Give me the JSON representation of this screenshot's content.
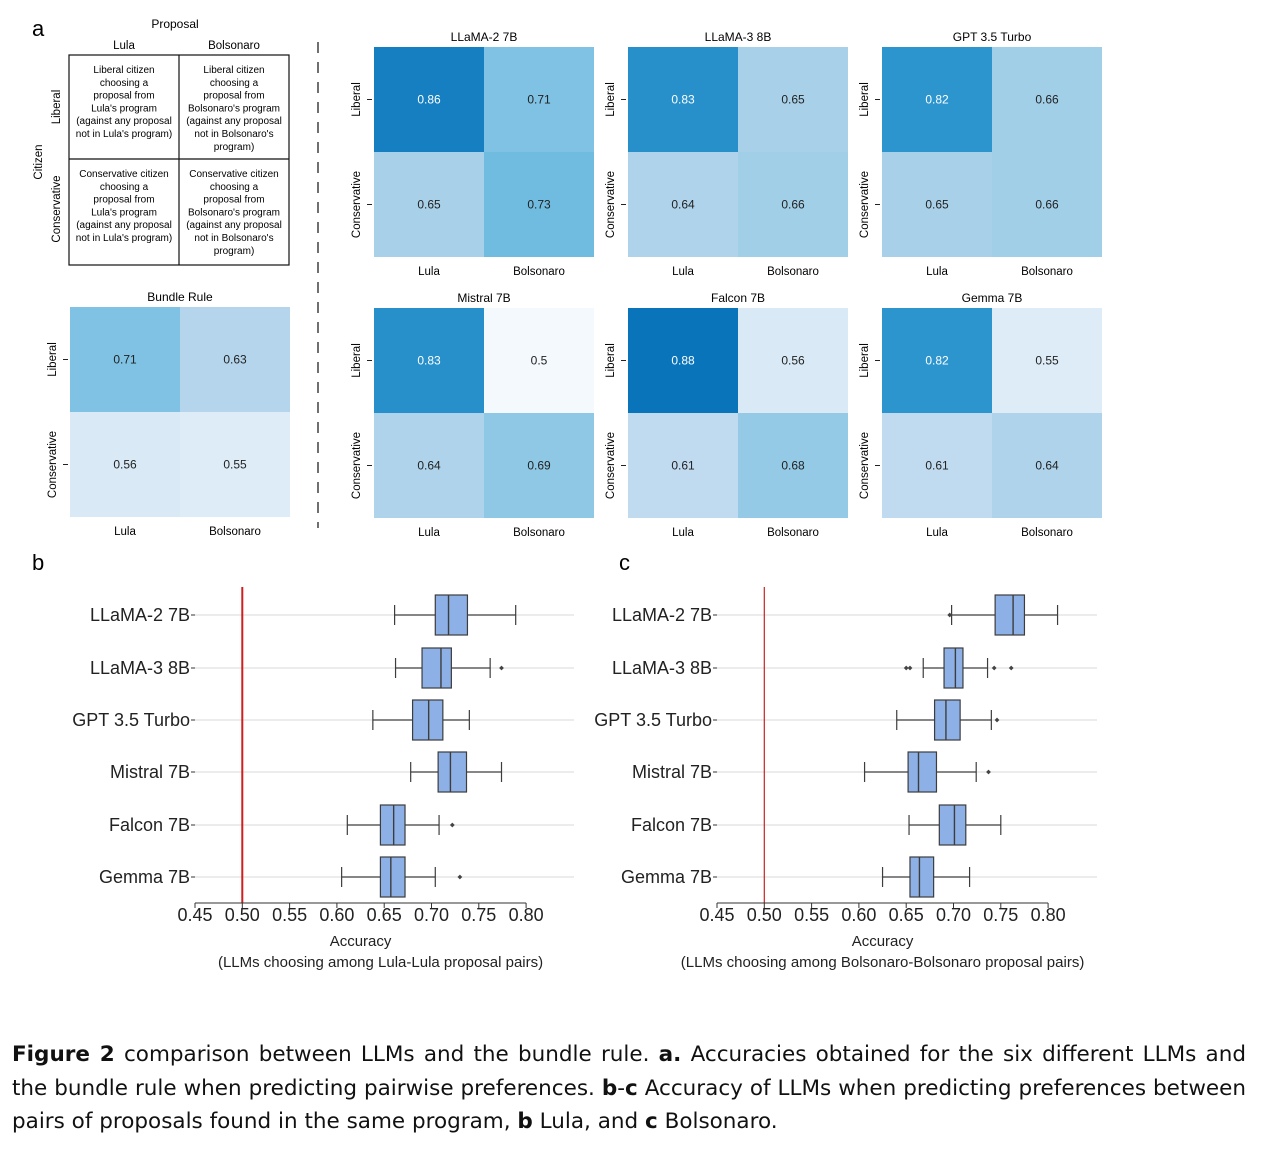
{
  "panel_letters": {
    "a": "a",
    "b": "b",
    "c": "c"
  },
  "colors": {
    "heat_scale": [
      "#f4f9fe",
      "#d8e9f6",
      "#b7d6ec",
      "#8ec8e5",
      "#5fb5de",
      "#2f97ce",
      "#0a74bb"
    ],
    "box_fill": "#8db1e6",
    "box_stroke": "#3d3d3d",
    "reference_line": "#cc1f1f",
    "grid": "#d9d9d9"
  },
  "schema": {
    "title": "Proposal",
    "col_headers": [
      "Lula",
      "Bolsonaro"
    ],
    "row_group_label": "Citizen",
    "row_headers": [
      "Liberal",
      "Conservative"
    ],
    "cells": [
      [
        [
          "Liberal citizen",
          "choosing a",
          "proposal from",
          "Lula's program",
          "(against any proposal",
          "not in Lula's program)"
        ],
        [
          "Liberal citizen",
          "choosing a",
          "proposal from",
          "Bolsonaro's program",
          "(against any proposal",
          "not in Bolsonaro's",
          "program)"
        ]
      ],
      [
        [
          "Conservative citizen",
          "choosing a",
          "proposal from",
          "Lula's program",
          "(against any proposal",
          "not in Lula's program)"
        ],
        [
          "Conservative citizen",
          "choosing a",
          "proposal from",
          "Bolsonaro's program",
          "(against any proposal",
          "not in Bolsonaro's",
          "program)"
        ]
      ]
    ]
  },
  "chart_data": [
    {
      "panel": "a",
      "type": "heatmap",
      "title": "Bundle Rule",
      "x_categories": [
        "Lula",
        "Bolsonaro"
      ],
      "y_categories": [
        "Liberal",
        "Conservative"
      ],
      "values": [
        [
          0.71,
          0.63
        ],
        [
          0.56,
          0.55
        ]
      ]
    },
    {
      "panel": "a",
      "type": "heatmap",
      "title": "LLaMA-2 7B",
      "x_categories": [
        "Lula",
        "Bolsonaro"
      ],
      "y_categories": [
        "Liberal",
        "Conservative"
      ],
      "values": [
        [
          0.86,
          0.71
        ],
        [
          0.65,
          0.73
        ]
      ]
    },
    {
      "panel": "a",
      "type": "heatmap",
      "title": "LLaMA-3 8B",
      "x_categories": [
        "Lula",
        "Bolsonaro"
      ],
      "y_categories": [
        "Liberal",
        "Conservative"
      ],
      "values": [
        [
          0.83,
          0.65
        ],
        [
          0.64,
          0.66
        ]
      ]
    },
    {
      "panel": "a",
      "type": "heatmap",
      "title": "GPT 3.5 Turbo",
      "x_categories": [
        "Lula",
        "Bolsonaro"
      ],
      "y_categories": [
        "Liberal",
        "Conservative"
      ],
      "values": [
        [
          0.82,
          0.66
        ],
        [
          0.65,
          0.66
        ]
      ]
    },
    {
      "panel": "a",
      "type": "heatmap",
      "title": "Mistral 7B",
      "x_categories": [
        "Lula",
        "Bolsonaro"
      ],
      "y_categories": [
        "Liberal",
        "Conservative"
      ],
      "values": [
        [
          0.83,
          0.5
        ],
        [
          0.64,
          0.69
        ]
      ]
    },
    {
      "panel": "a",
      "type": "heatmap",
      "title": "Falcon 7B",
      "x_categories": [
        "Lula",
        "Bolsonaro"
      ],
      "y_categories": [
        "Liberal",
        "Conservative"
      ],
      "values": [
        [
          0.88,
          0.56
        ],
        [
          0.61,
          0.68
        ]
      ]
    },
    {
      "panel": "a",
      "type": "heatmap",
      "title": "Gemma 7B",
      "x_categories": [
        "Lula",
        "Bolsonaro"
      ],
      "y_categories": [
        "Liberal",
        "Conservative"
      ],
      "values": [
        [
          0.82,
          0.55
        ],
        [
          0.61,
          0.64
        ]
      ]
    },
    {
      "panel": "b",
      "type": "box",
      "orientation": "horizontal",
      "xlabel": "Accuracy",
      "xlabel2": "(LLMs choosing among Lula-Lula proposal pairs)",
      "xlim": [
        0.45,
        0.8
      ],
      "xticks": [
        0.45,
        0.5,
        0.55,
        0.6,
        0.65,
        0.7,
        0.75,
        0.8
      ],
      "xtick_labels": [
        "0.45",
        "0.50",
        "0.55",
        "0.60",
        "0.65",
        "0.70",
        "0.75",
        "0.80"
      ],
      "reference_line": 0.5,
      "categories": [
        "LLaMA-2 7B",
        "LLaMA-3 8B",
        "GPT 3.5 Turbo",
        "Mistral 7B",
        "Falcon 7B",
        "Gemma 7B"
      ],
      "boxes": [
        {
          "whisker_low": 0.661,
          "q1": 0.704,
          "median": 0.718,
          "q3": 0.738,
          "whisker_high": 0.789,
          "outliers": []
        },
        {
          "whisker_low": 0.662,
          "q1": 0.69,
          "median": 0.71,
          "q3": 0.721,
          "whisker_high": 0.762,
          "outliers": [
            0.774
          ]
        },
        {
          "whisker_low": 0.638,
          "q1": 0.68,
          "median": 0.697,
          "q3": 0.712,
          "whisker_high": 0.74,
          "outliers": []
        },
        {
          "whisker_low": 0.678,
          "q1": 0.707,
          "median": 0.72,
          "q3": 0.737,
          "whisker_high": 0.774,
          "outliers": []
        },
        {
          "whisker_low": 0.611,
          "q1": 0.646,
          "median": 0.66,
          "q3": 0.672,
          "whisker_high": 0.708,
          "outliers": [
            0.722
          ]
        },
        {
          "whisker_low": 0.605,
          "q1": 0.646,
          "median": 0.657,
          "q3": 0.672,
          "whisker_high": 0.704,
          "outliers": [
            0.73
          ]
        }
      ]
    },
    {
      "panel": "c",
      "type": "box",
      "orientation": "horizontal",
      "xlabel": "Accuracy",
      "xlabel2": "(LLMs choosing among Bolsonaro-Bolsonaro proposal pairs)",
      "xlim": [
        0.45,
        0.8
      ],
      "xticks": [
        0.45,
        0.5,
        0.55,
        0.6,
        0.65,
        0.7,
        0.75,
        0.8
      ],
      "xtick_labels": [
        "0.45",
        "0.50",
        "0.55",
        "0.60",
        "0.65",
        "0.70",
        "0.75",
        "0.80"
      ],
      "reference_line": 0.5,
      "categories": [
        "LLaMA-2 7B",
        "LLaMA-3 8B",
        "GPT 3.5 Turbo",
        "Mistral 7B",
        "Falcon 7B",
        "Gemma 7B"
      ],
      "boxes": [
        {
          "whisker_low": 0.698,
          "q1": 0.744,
          "median": 0.763,
          "q3": 0.775,
          "whisker_high": 0.81,
          "outliers": [
            0.696
          ]
        },
        {
          "whisker_low": 0.668,
          "q1": 0.69,
          "median": 0.702,
          "q3": 0.71,
          "whisker_high": 0.736,
          "outliers": [
            0.65,
            0.654,
            0.743,
            0.761
          ]
        },
        {
          "whisker_low": 0.64,
          "q1": 0.68,
          "median": 0.692,
          "q3": 0.707,
          "whisker_high": 0.74,
          "outliers": [
            0.746
          ]
        },
        {
          "whisker_low": 0.606,
          "q1": 0.652,
          "median": 0.663,
          "q3": 0.682,
          "whisker_high": 0.724,
          "outliers": [
            0.737
          ]
        },
        {
          "whisker_low": 0.653,
          "q1": 0.685,
          "median": 0.701,
          "q3": 0.713,
          "whisker_high": 0.75,
          "outliers": []
        },
        {
          "whisker_low": 0.625,
          "q1": 0.654,
          "median": 0.664,
          "q3": 0.679,
          "whisker_high": 0.717,
          "outliers": []
        }
      ]
    }
  ],
  "caption": {
    "fig_label": "Figure 2",
    "intro": " comparison between LLMs and the bundle rule. ",
    "a_label": "a.",
    "a_text": " Accuracies obtained for the six different LLMs and the bundle rule when predicting pairwise preferences. ",
    "bc_label": "b",
    "dash": "-",
    "c_label_1": "c",
    "bc_text": " Accuracy of LLMs when predicting preferences between pairs of proposals found in the same program, ",
    "b_label": "b",
    "b_text": " Lula, and ",
    "c_label_2": "c",
    "c_text": " Bolsonaro."
  }
}
